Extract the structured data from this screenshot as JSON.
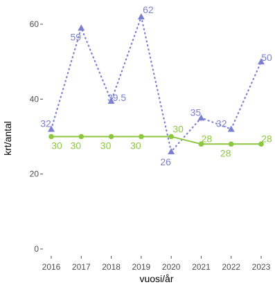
{
  "chart_data": {
    "type": "line",
    "xlabel": "vuosi/år",
    "ylabel": "krt/antal",
    "x": [
      2016,
      2017,
      2018,
      2019,
      2020,
      2021,
      2022,
      2023
    ],
    "ylim": [
      0,
      65
    ],
    "yticks": [
      0,
      20,
      40,
      60
    ],
    "grid": false,
    "series": [
      {
        "values": [
          32,
          59,
          39.5,
          62,
          26,
          35,
          32,
          50
        ],
        "labels": [
          "32",
          "59",
          "39.5",
          "62",
          "26",
          "35",
          "32",
          "50"
        ],
        "color": "#7b7fd0",
        "line_style": "dotted",
        "marker": "triangle"
      },
      {
        "values": [
          30,
          30,
          30,
          30,
          30,
          28,
          28,
          28
        ],
        "labels": [
          "30",
          "30",
          "30",
          "30",
          "30",
          "28",
          "28",
          "28"
        ],
        "color": "#8dc63f",
        "line_style": "solid",
        "marker": "circle"
      }
    ]
  }
}
